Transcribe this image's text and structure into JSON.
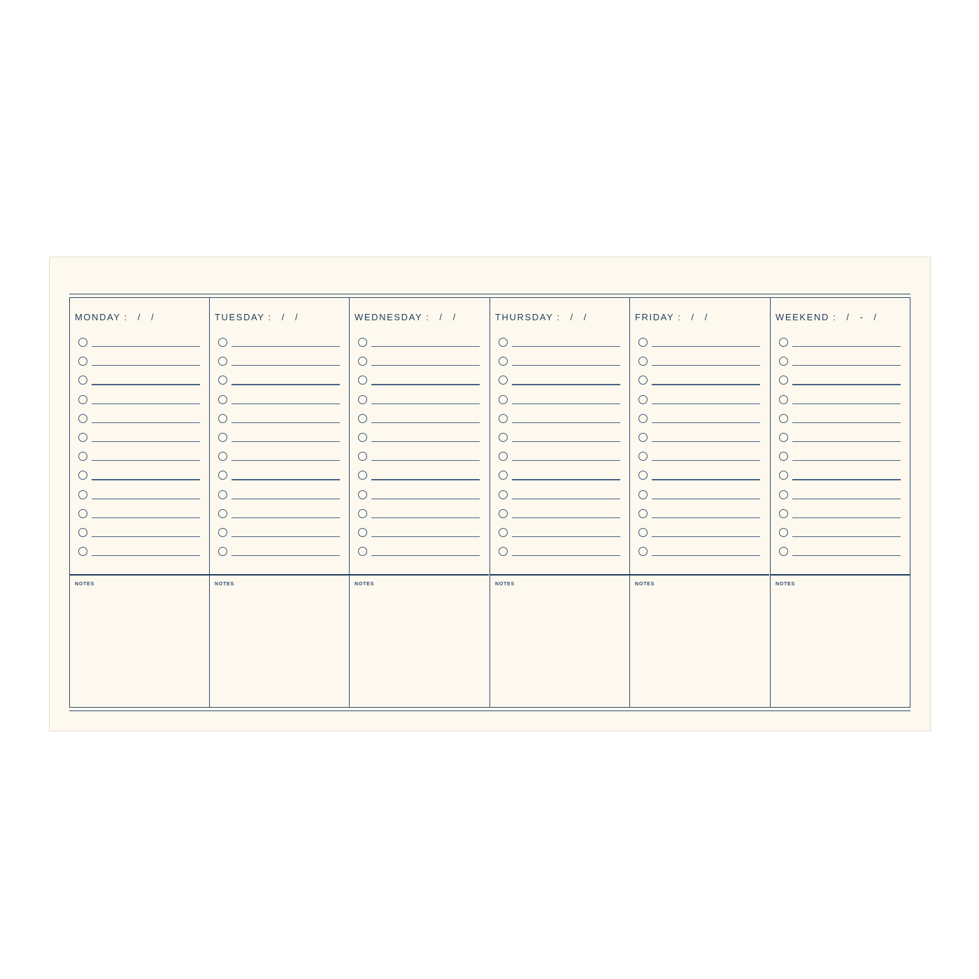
{
  "planner": {
    "days": [
      {
        "label": "MONDAY :",
        "date": "/ /",
        "notes_label": "NOTES"
      },
      {
        "label": "TUESDAY :",
        "date": "/ /",
        "notes_label": "NOTES"
      },
      {
        "label": "WEDNESDAY :",
        "date": "/ /",
        "notes_label": "NOTES"
      },
      {
        "label": "THURSDAY :",
        "date": "/ /",
        "notes_label": "NOTES"
      },
      {
        "label": "FRIDAY :",
        "date": "/ /",
        "notes_label": "NOTES"
      },
      {
        "label": "WEEKEND :",
        "date": "/ - /",
        "notes_label": "NOTES"
      }
    ],
    "ink_color": "#1f3a5f",
    "paper_color": "#fdf9ee"
  }
}
